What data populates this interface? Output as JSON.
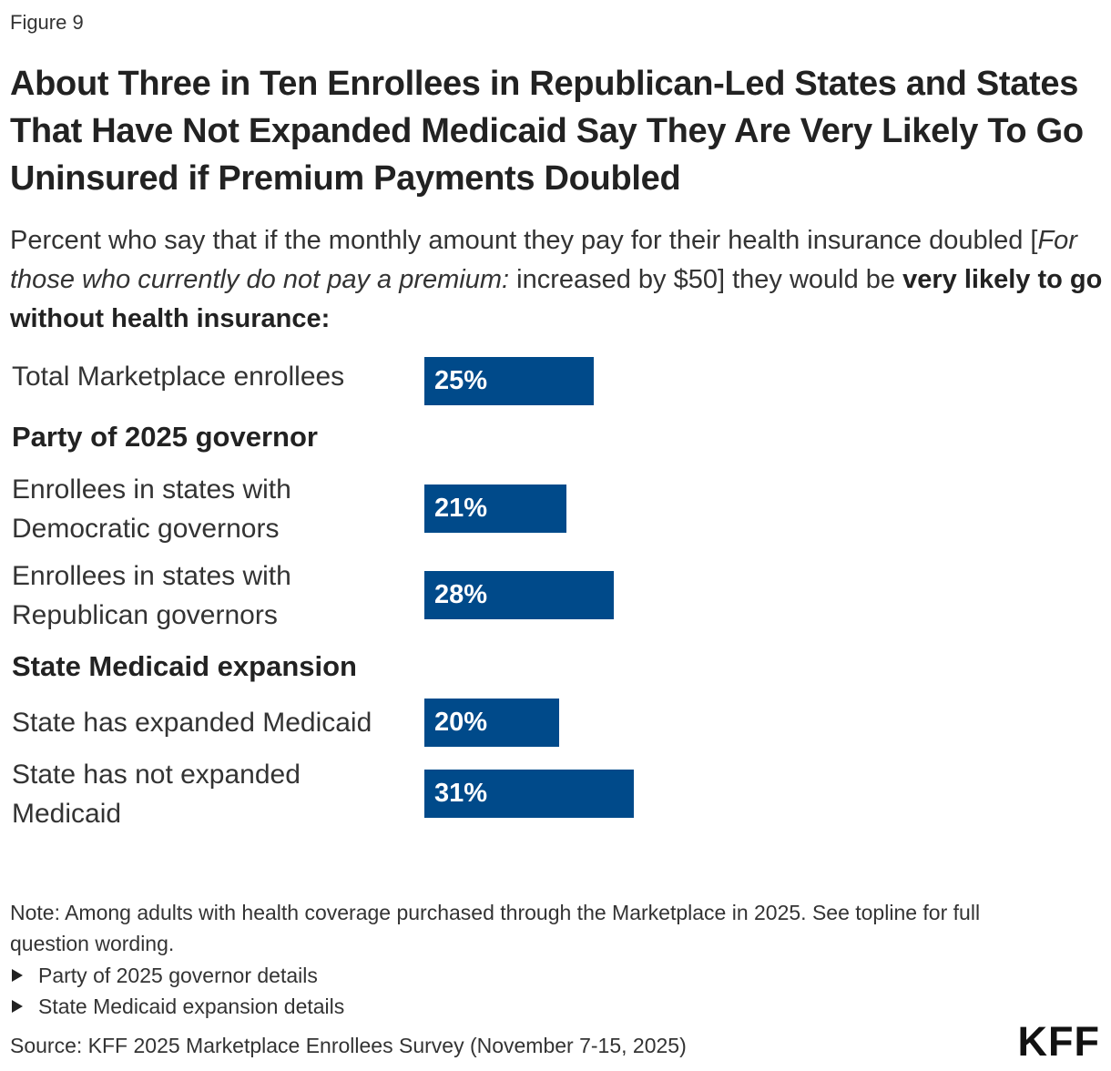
{
  "figure_label": "Figure 9",
  "title": "About Three in Ten Enrollees in Republican-Led States and States That Have Not Expanded Medicaid Say They Are Very Likely To Go Uninsured if Premium Payments Doubled",
  "subtitle": {
    "part1": "Percent who say that if the monthly amount they pay for their health insurance doubled [",
    "italic": "For those who currently do not pay a premium:",
    "part2": " increased by $50] they would be ",
    "bold": "very likely to go without health insurance:"
  },
  "chart_data": {
    "type": "bar",
    "orientation": "horizontal",
    "xlim": [
      0,
      100
    ],
    "value_suffix": "%",
    "bar_color": "#004a8a",
    "groups": [
      {
        "heading": "Party of 2025 governor"
      },
      {
        "heading": "State Medicaid expansion"
      }
    ],
    "categories": [
      "Total Marketplace enrollees",
      "Enrollees in states with Democratic governors",
      "Enrollees in states with Republican governors",
      "State has expanded Medicaid",
      "State has not expanded Medicaid"
    ],
    "category_lines": [
      [
        "Total Marketplace enrollees"
      ],
      [
        "Enrollees in states with",
        "Democratic governors"
      ],
      [
        "Enrollees in states with",
        "Republican governors"
      ],
      [
        "State has expanded Medicaid"
      ],
      [
        "State has not expanded",
        "Medicaid"
      ]
    ],
    "values": [
      25,
      21,
      28,
      20,
      31
    ],
    "value_labels": [
      "25%",
      "21%",
      "28%",
      "20%",
      "31%"
    ]
  },
  "note": "Note: Among adults with health coverage purchased through the Marketplace in 2025. See topline for full question wording.",
  "details": [
    "Party of 2025 governor details",
    "State Medicaid expansion details"
  ],
  "source": "Source: KFF 2025 Marketplace Enrollees Survey (November 7-15, 2025)",
  "logo_text": "KFF"
}
